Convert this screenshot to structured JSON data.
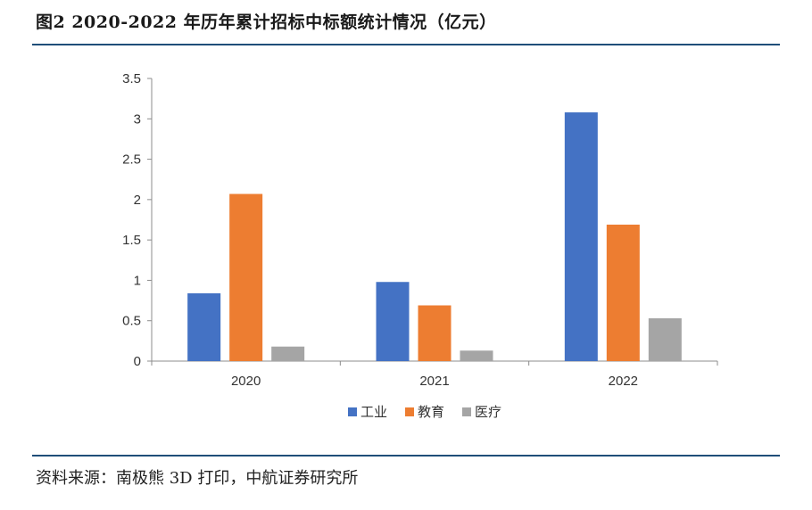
{
  "title": "图2  2020-2022 年历年累计招标中标额统计情况（亿元）",
  "source": "资料来源：南极熊 3D 打印，中航证券研究所",
  "chart_data": {
    "type": "bar",
    "title": "图2  2020-2022 年历年累计招标中标额统计情况（亿元）",
    "categories": [
      "2020",
      "2021",
      "2022"
    ],
    "series": [
      {
        "name": "工业",
        "color": "#4472c4",
        "values": [
          0.84,
          0.98,
          3.08
        ]
      },
      {
        "name": "教育",
        "color": "#ed7d31",
        "values": [
          2.07,
          0.69,
          1.69
        ]
      },
      {
        "name": "医疗",
        "color": "#a5a5a5",
        "values": [
          0.18,
          0.13,
          0.53
        ]
      }
    ],
    "yticks": [
      "0",
      "0.5",
      "1",
      "1.5",
      "2",
      "2.5",
      "3",
      "3.5"
    ],
    "ylim": [
      0,
      3.5
    ],
    "xlabel": "",
    "ylabel": "",
    "legend_position": "bottom",
    "grid": false
  }
}
